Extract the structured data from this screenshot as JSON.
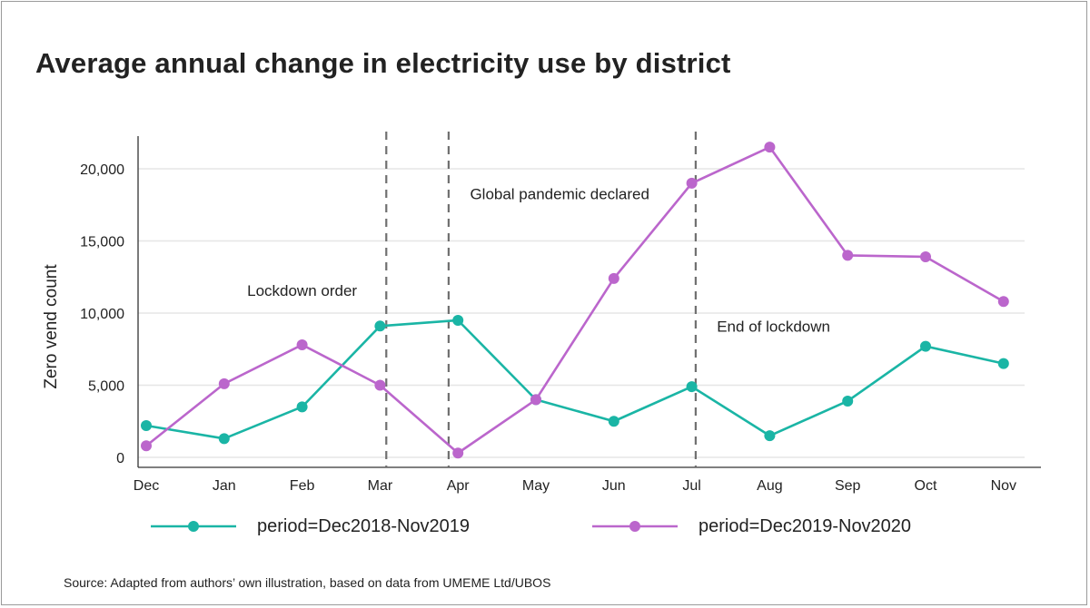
{
  "header": {
    "title": "Average annual change in electricity use by district"
  },
  "footer": {
    "source": "Source: Adapted from authors’ own illustration, based on data from UMEME Ltd/UBOS"
  },
  "chart_data": {
    "type": "line",
    "title": "Average annual change in electricity use by district",
    "xlabel": "",
    "ylabel": "Zero vend count",
    "categories": [
      "Dec",
      "Jan",
      "Feb",
      "Mar",
      "Apr",
      "May",
      "Jun",
      "Jul",
      "Aug",
      "Sep",
      "Oct",
      "Nov"
    ],
    "yticks": [
      0,
      5000,
      10000,
      15000,
      20000
    ],
    "ytick_labels": [
      "0",
      "5,000",
      "10,000",
      "15,000",
      "20,000"
    ],
    "ylim": [
      -500,
      22000
    ],
    "grid": "horizontal",
    "legend_position": "bottom",
    "series": [
      {
        "name": "period=Dec2018-Nov2019",
        "color": "#1ab5a5",
        "values": [
          2200,
          1300,
          3500,
          9100,
          9500,
          4000,
          2500,
          4900,
          1500,
          3900,
          7700,
          6500
        ]
      },
      {
        "name": "period=Dec2019-Nov2020",
        "color": "#bb66cc",
        "values": [
          800,
          5100,
          7800,
          5000,
          300,
          4000,
          12400,
          19000,
          21500,
          14000,
          13900,
          10800
        ]
      }
    ],
    "vlines": [
      {
        "at": "Mar",
        "offset": 0.08
      },
      {
        "at": "Apr",
        "offset": -0.12
      },
      {
        "at": "Jul",
        "offset": 0.05
      }
    ],
    "annotations": [
      {
        "text": "Lockdown order",
        "category": "Feb",
        "y": 11200
      },
      {
        "text": "Global pandemic declared",
        "category": "Apr",
        "y": 17900
      },
      {
        "text": "End of lockdown",
        "category": "Jul",
        "y": 8700
      }
    ]
  }
}
